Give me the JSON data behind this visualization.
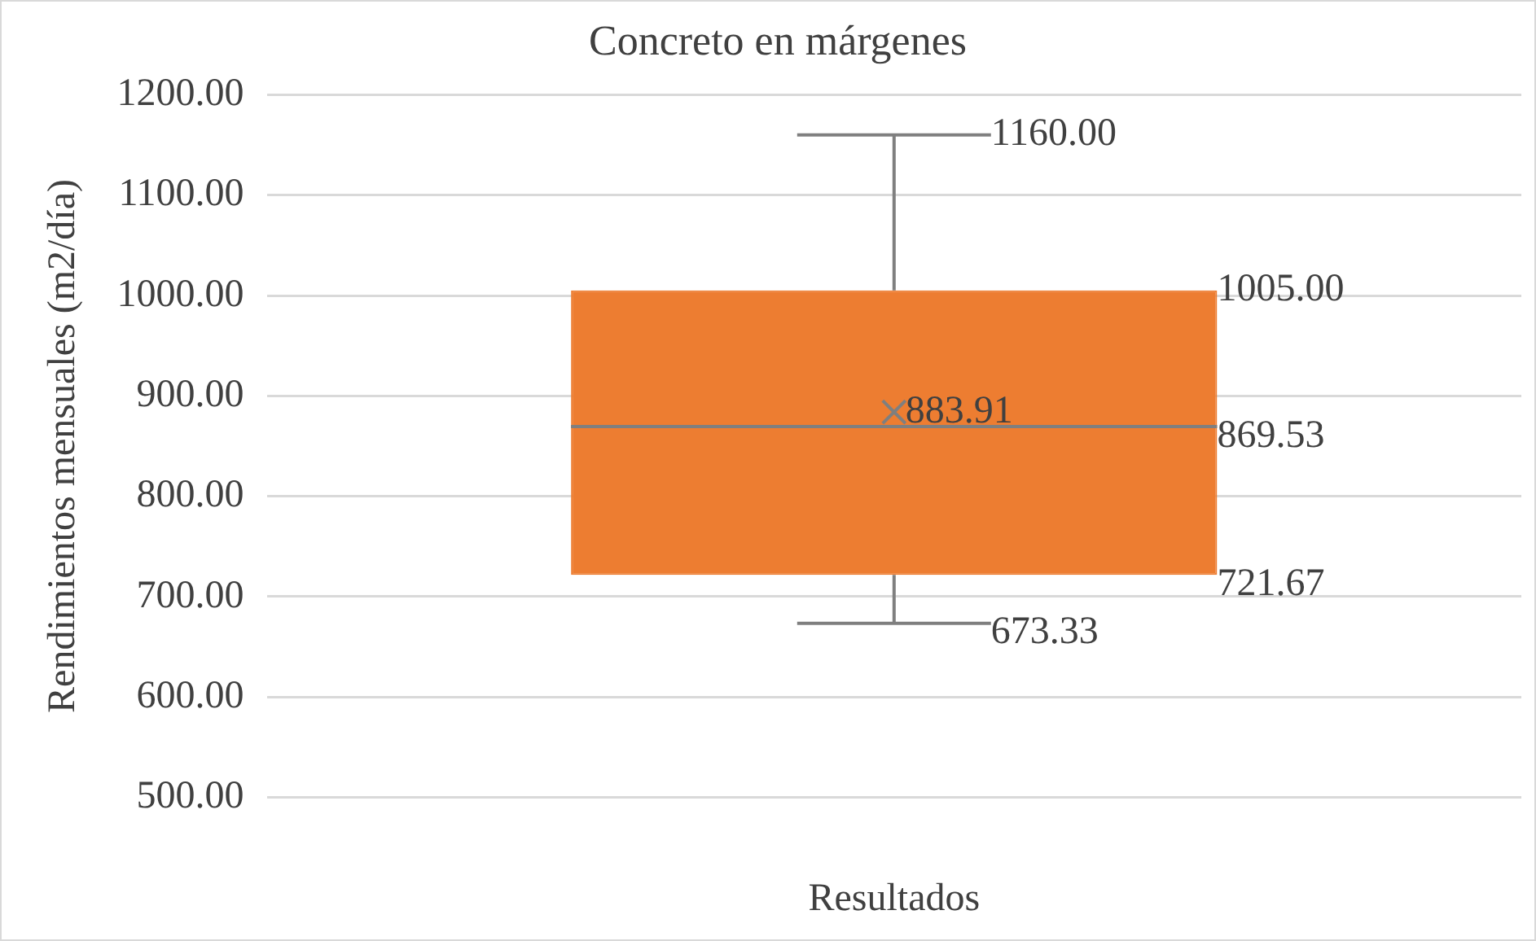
{
  "chart_data": {
    "type": "box",
    "title": "Concreto en márgenes",
    "xlabel": "Resultados",
    "ylabel": "Rendimientos mensuales (m2/día)",
    "categories": [
      null
    ],
    "boxes": [
      {
        "low": 673.33,
        "q1": 721.67,
        "median": 869.53,
        "q3": 1005,
        "high": 1160,
        "mean": 883.91
      }
    ],
    "color": "#ed7d31",
    "ylim": [
      500,
      1200
    ],
    "yticks": [
      {
        "value": 500,
        "label": "500.00"
      },
      {
        "value": 600,
        "label": "600.00"
      },
      {
        "value": 700,
        "label": "700.00"
      },
      {
        "value": 800,
        "label": "800.00"
      },
      {
        "value": 900,
        "label": "900.00"
      },
      {
        "value": 1000,
        "label": "1000.00"
      },
      {
        "value": 1100,
        "label": "1100.00"
      },
      {
        "value": 1200,
        "label": "1200.00"
      }
    ],
    "grid": "y",
    "legend": false,
    "annotations": [
      "1160.00",
      "1005.00",
      "883.91",
      "869.53",
      "721.67",
      "673.33"
    ]
  }
}
